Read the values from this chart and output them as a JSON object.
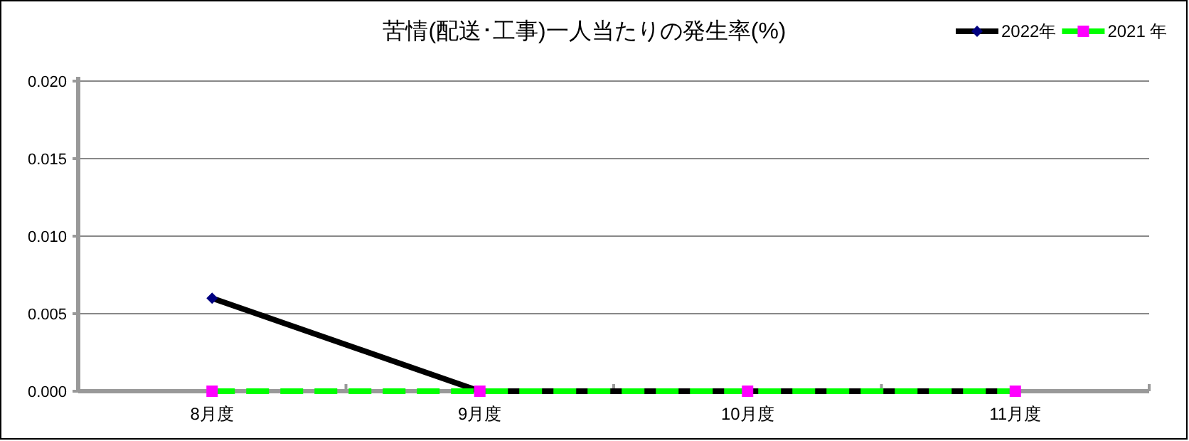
{
  "chart_data": {
    "type": "line",
    "title": "苦情(配送･工事)一人当たりの発生率(%)",
    "categories": [
      "8月度",
      "9月度",
      "10月度",
      "11月度"
    ],
    "series": [
      {
        "name": "2022年",
        "color": "#000000",
        "colors": [
          "#000080",
          "#000080",
          "#000080",
          "#000080"
        ],
        "marker": "diamond",
        "line_style": "solid",
        "values": [
          0.006,
          0,
          0,
          0
        ]
      },
      {
        "name": "2021 年",
        "color": "#00ff00",
        "colors": [
          "#ff00ff",
          "#ff00ff",
          "#ff00ff",
          "#ff00ff"
        ],
        "marker": "square",
        "line_style": "dashed",
        "values": [
          0,
          0,
          0,
          0
        ]
      }
    ],
    "ylim": [
      0,
      0.02
    ],
    "yticks": [
      {
        "value": 0,
        "label": "0.000"
      },
      {
        "value": 0.005,
        "label": "0.005"
      },
      {
        "value": 0.01,
        "label": "0.010"
      },
      {
        "value": 0.015,
        "label": "0.015"
      },
      {
        "value": 0.02,
        "label": "0.020"
      }
    ],
    "grid": "y",
    "legend": "top right"
  }
}
